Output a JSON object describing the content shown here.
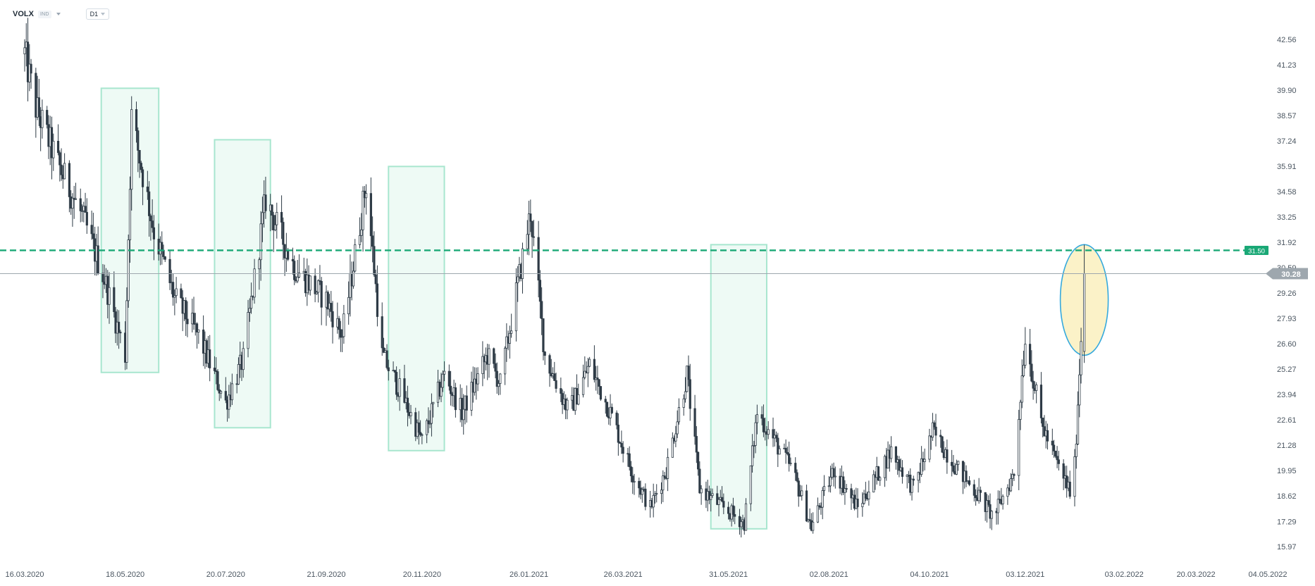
{
  "toolbar": {
    "symbol": "VOLX",
    "symbol_type": "IND",
    "interval": "D1"
  },
  "colors": {
    "candle": "#2e3b46",
    "zone_fill": "#eefaf5",
    "zone_stroke": "#a8e6cf",
    "resistance": "#1aa876",
    "price_line": "#9ea7ae",
    "highlight_fill": "#fbf2c8",
    "highlight_stroke": "#35a9dd"
  },
  "chart_data": {
    "type": "candlestick",
    "ylim": [
      15.97,
      43.5
    ],
    "y_ticks": [
      "42.56",
      "41.23",
      "39.90",
      "38.57",
      "37.24",
      "35.91",
      "34.58",
      "33.25",
      "31.92",
      "30.59",
      "29.26",
      "27.93",
      "26.60",
      "25.27",
      "23.94",
      "22.61",
      "21.28",
      "19.95",
      "18.62",
      "17.29",
      "15.97"
    ],
    "x_ticks": [
      "16.03.2020",
      "18.05.2020",
      "20.07.2020",
      "21.09.2020",
      "20.11.2020",
      "26.01.2021",
      "26.03.2021",
      "31.05.2021",
      "02.08.2021",
      "04.10.2021",
      "03.12.2021",
      "03.02.2022",
      "20.03.2022",
      "04.05.2022"
    ],
    "resistance_level": 31.5,
    "resistance_label": "31.50",
    "last_price": 30.28,
    "last_price_label": "30.28",
    "zones": [
      {
        "start": "2020-05-03",
        "end": "2020-06-08",
        "low": 25.1,
        "high": 40.0
      },
      {
        "start": "2020-07-13",
        "end": "2020-08-17",
        "low": 22.2,
        "high": 37.3
      },
      {
        "start": "2020-10-30",
        "end": "2020-12-04",
        "low": 21.0,
        "high": 35.9
      },
      {
        "start": "2021-05-20",
        "end": "2021-06-24",
        "low": 16.9,
        "high": 31.8
      }
    ],
    "highlight": {
      "date": "2022-01-09",
      "low": 26.0,
      "high": 31.8
    },
    "key_points": [
      {
        "date": "2020-03-16",
        "close": 41.8
      },
      {
        "date": "2020-03-23",
        "close": 39.0
      },
      {
        "date": "2020-04-06",
        "close": 36.0
      },
      {
        "date": "2020-04-21",
        "close": 33.3
      },
      {
        "date": "2020-05-05",
        "close": 30.0
      },
      {
        "date": "2020-05-18",
        "close": 26.0
      },
      {
        "date": "2020-05-22",
        "close": 38.5
      },
      {
        "date": "2020-06-05",
        "close": 32.5
      },
      {
        "date": "2020-06-18",
        "close": 29.0
      },
      {
        "date": "2020-07-03",
        "close": 27.0
      },
      {
        "date": "2020-07-20",
        "close": 23.5
      },
      {
        "date": "2020-07-31",
        "close": 25.8
      },
      {
        "date": "2020-08-14",
        "close": 34.2
      },
      {
        "date": "2020-09-01",
        "close": 30.6
      },
      {
        "date": "2020-09-21",
        "close": 28.9
      },
      {
        "date": "2020-10-01",
        "close": 27.0
      },
      {
        "date": "2020-10-16",
        "close": 35.0
      },
      {
        "date": "2020-10-26",
        "close": 26.0
      },
      {
        "date": "2020-11-06",
        "close": 24.2
      },
      {
        "date": "2020-11-20",
        "close": 21.5
      },
      {
        "date": "2020-12-04",
        "close": 25.0
      },
      {
        "date": "2020-12-15",
        "close": 23.0
      },
      {
        "date": "2020-12-31",
        "close": 26.0
      },
      {
        "date": "2021-01-08",
        "close": 24.5
      },
      {
        "date": "2021-01-27",
        "close": 33.5
      },
      {
        "date": "2021-02-05",
        "close": 26.0
      },
      {
        "date": "2021-02-20",
        "close": 23.0
      },
      {
        "date": "2021-03-05",
        "close": 25.5
      },
      {
        "date": "2021-03-18",
        "close": 23.0
      },
      {
        "date": "2021-04-01",
        "close": 19.8
      },
      {
        "date": "2021-04-12",
        "close": 18.0
      },
      {
        "date": "2021-04-22",
        "close": 20.0
      },
      {
        "date": "2021-05-05",
        "close": 25.0
      },
      {
        "date": "2021-05-13",
        "close": 19.0
      },
      {
        "date": "2021-05-28",
        "close": 18.0
      },
      {
        "date": "2021-06-10",
        "close": 17.2
      },
      {
        "date": "2021-06-18",
        "close": 23.0
      },
      {
        "date": "2021-07-10",
        "close": 20.0
      },
      {
        "date": "2021-07-22",
        "close": 17.0
      },
      {
        "date": "2021-08-05",
        "close": 20.0
      },
      {
        "date": "2021-08-20",
        "close": 18.0
      },
      {
        "date": "2021-09-10",
        "close": 21.0
      },
      {
        "date": "2021-09-24",
        "close": 19.0
      },
      {
        "date": "2021-10-06",
        "close": 22.0
      },
      {
        "date": "2021-10-22",
        "close": 20.0
      },
      {
        "date": "2021-11-05",
        "close": 18.5
      },
      {
        "date": "2021-11-13",
        "close": 17.5
      },
      {
        "date": "2021-11-26",
        "close": 19.8
      },
      {
        "date": "2021-12-03",
        "close": 27.0
      },
      {
        "date": "2021-12-13",
        "close": 22.5
      },
      {
        "date": "2021-12-22",
        "close": 20.5
      },
      {
        "date": "2022-01-02",
        "close": 18.5
      },
      {
        "date": "2022-01-09",
        "close": 30.28
      }
    ]
  }
}
